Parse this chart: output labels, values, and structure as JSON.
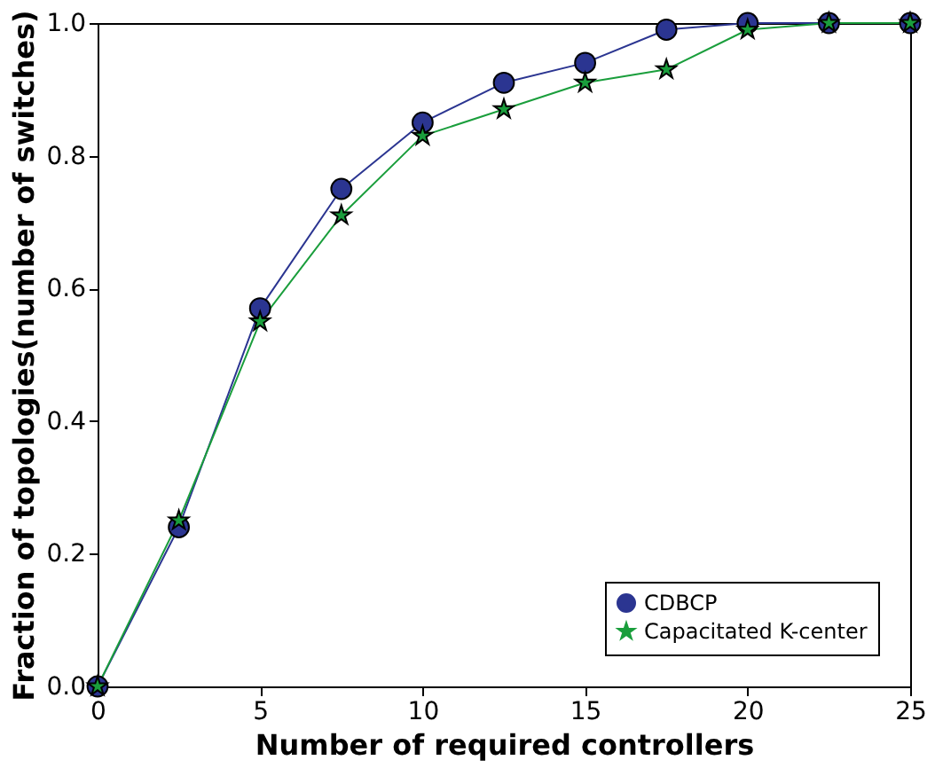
{
  "chart_data": {
    "type": "line",
    "xlabel": "Number of required controllers",
    "ylabel": "Fraction of topologies(number of switches)",
    "x": [
      0,
      2.5,
      5,
      7.5,
      10,
      12.5,
      15,
      17.5,
      20,
      22.5,
      25
    ],
    "series": [
      {
        "name": "CDBCP",
        "color": "#2b3591",
        "marker": "circle",
        "values": [
          0,
          0.24,
          0.57,
          0.75,
          0.85,
          0.91,
          0.94,
          0.99,
          1.0,
          1.0,
          1.0
        ]
      },
      {
        "name": "Capacitated K-center",
        "color": "#1a9e3c",
        "marker": "star",
        "values": [
          0,
          0.25,
          0.55,
          0.71,
          0.83,
          0.87,
          0.91,
          0.93,
          0.99,
          1.0,
          1.0
        ]
      }
    ],
    "xlim": [
      0,
      25
    ],
    "xticks": [
      0,
      5,
      10,
      15,
      20,
      25
    ],
    "ylim": [
      0,
      1
    ],
    "yticks": [
      {
        "value": 0,
        "label": "0.0"
      },
      {
        "value": 0.2,
        "label": "0.2"
      },
      {
        "value": 0.4,
        "label": "0.4"
      },
      {
        "value": 0.6,
        "label": "0.6"
      },
      {
        "value": 0.8,
        "label": "0.8"
      },
      {
        "value": 1,
        "label": "1.0"
      }
    ],
    "grid": false,
    "legend": "bottom right",
    "line_style": "solid"
  }
}
